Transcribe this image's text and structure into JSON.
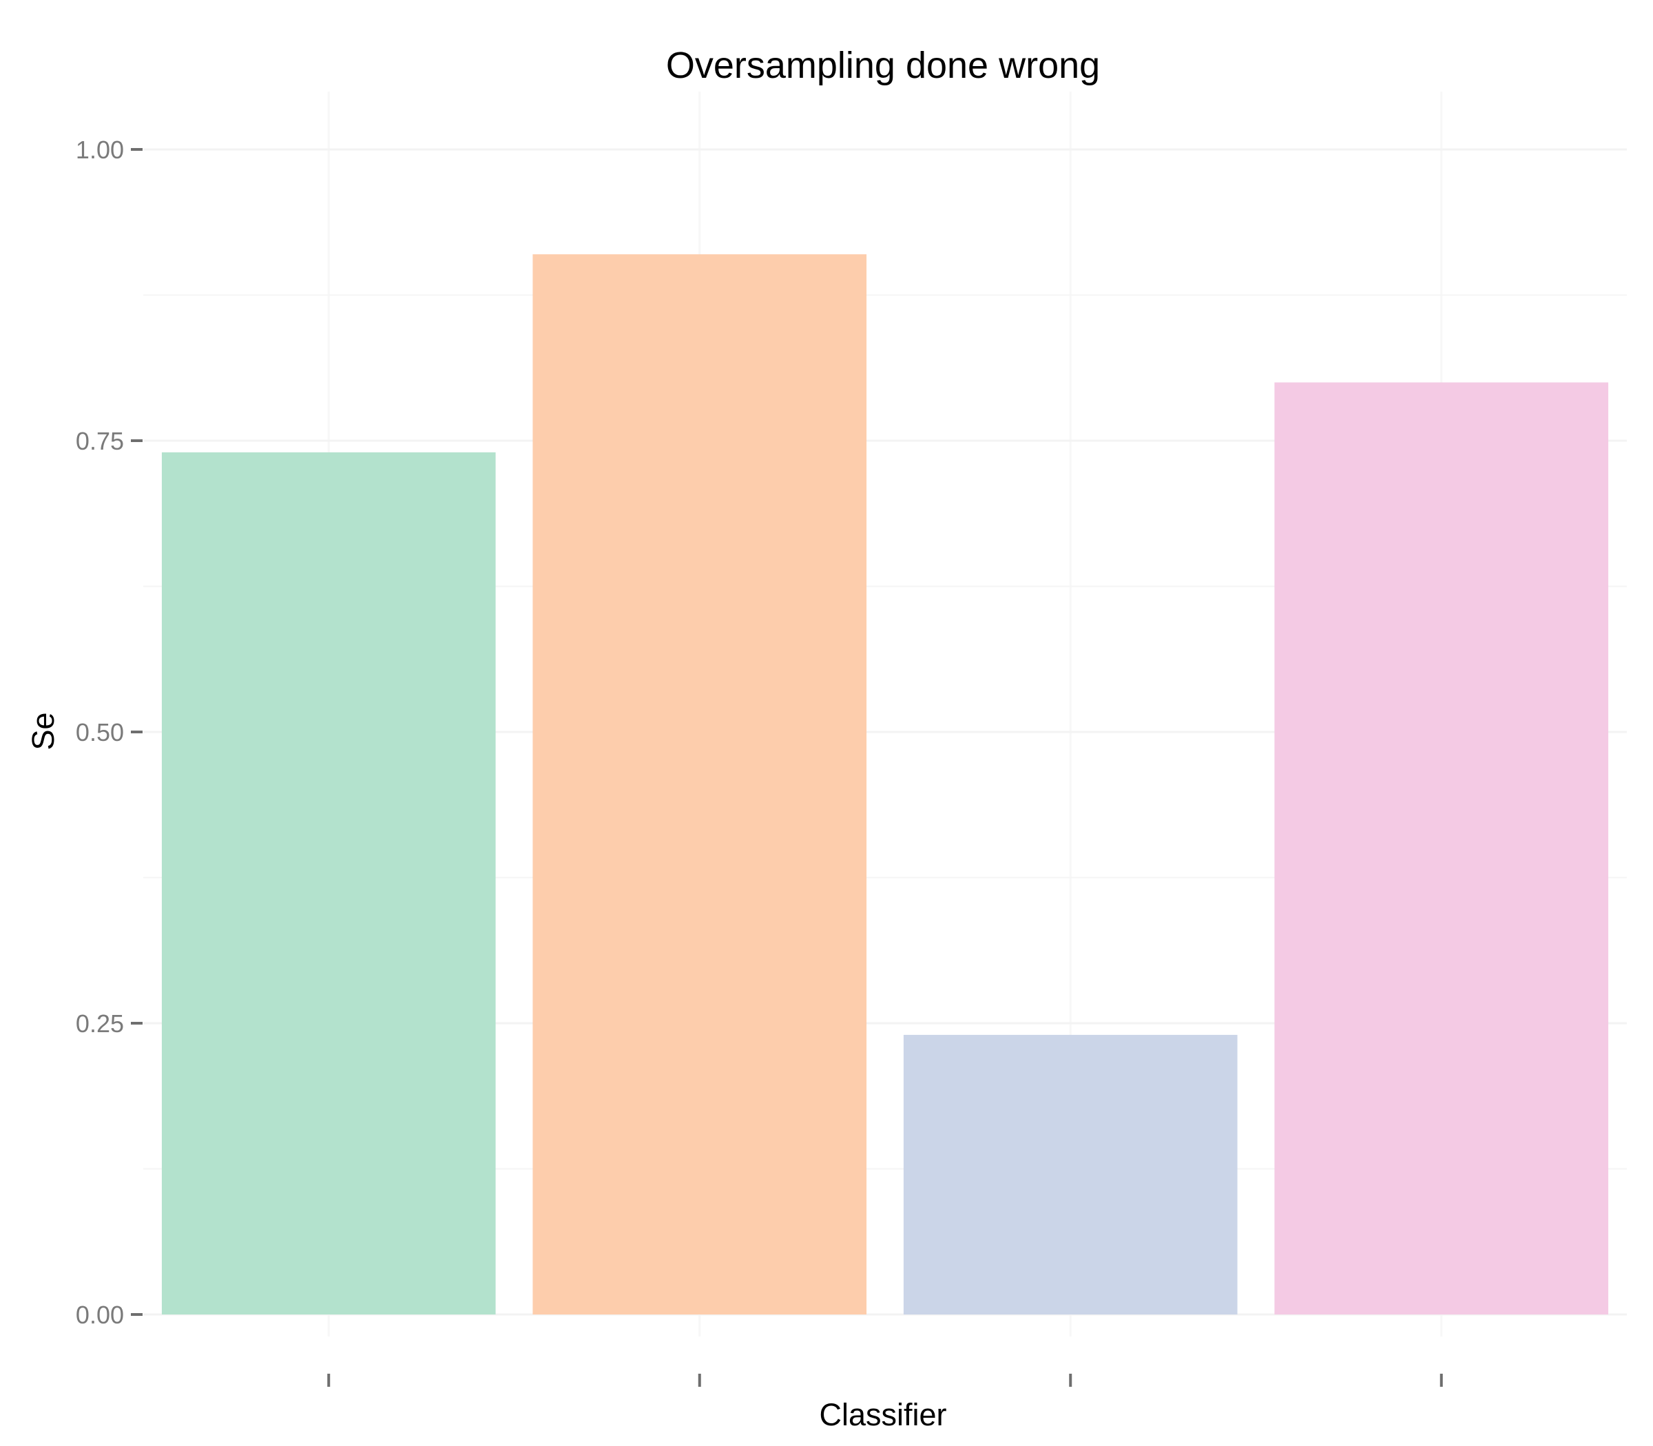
{
  "chart_data": {
    "type": "bar",
    "title": "Oversampling done wrong",
    "xlabel": "Classifier",
    "ylabel": "Se",
    "categories": [
      "",
      "",
      "",
      ""
    ],
    "values": [
      0.74,
      0.91,
      0.24,
      0.8
    ],
    "colors": [
      "#b3e2cd",
      "#fdcdac",
      "#cbd5e8",
      "#f4cae4"
    ],
    "ylim": [
      0,
      1
    ],
    "yticks": [
      0,
      0.25,
      0.5,
      0.75,
      1
    ],
    "ytick_labels": [
      "0.00",
      "0.25",
      "0.50",
      "0.75",
      "1.00"
    ],
    "grid": true,
    "legend": false
  }
}
